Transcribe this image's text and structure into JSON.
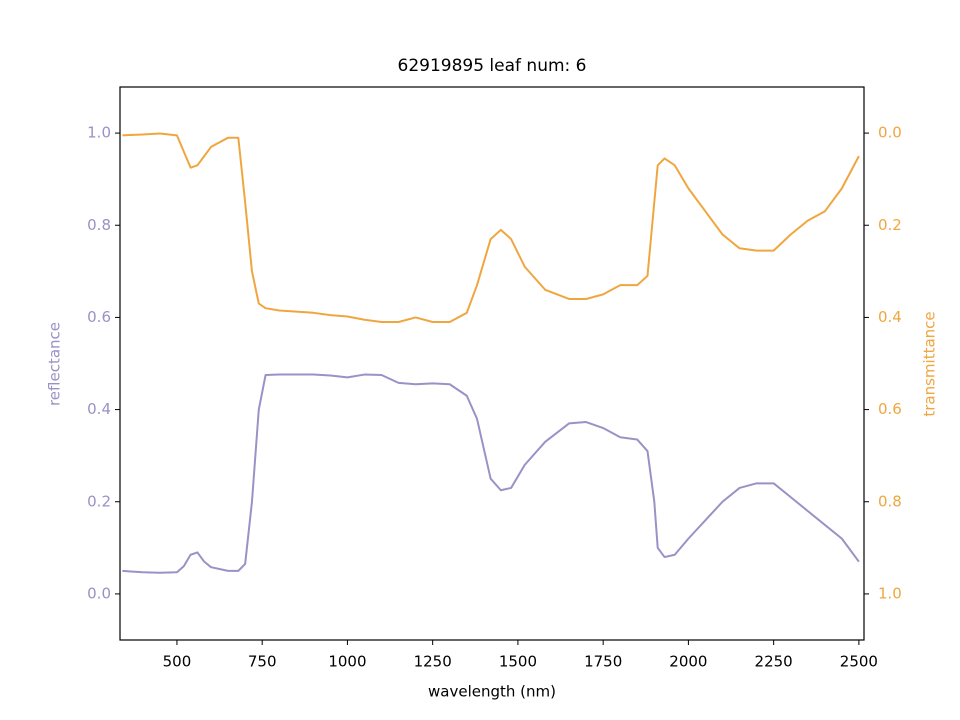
{
  "chart_data": {
    "type": "line",
    "title": "62919895 leaf num: 6",
    "x_label": "wavelength (nm)",
    "y_label": "reflectance",
    "y2_label": "transmittance",
    "x": [
      340,
      400,
      450,
      500,
      520,
      540,
      560,
      580,
      600,
      650,
      680,
      700,
      720,
      740,
      760,
      800,
      900,
      950,
      1000,
      1050,
      1100,
      1150,
      1200,
      1250,
      1300,
      1350,
      1380,
      1420,
      1450,
      1480,
      1520,
      1580,
      1650,
      1700,
      1750,
      1800,
      1850,
      1880,
      1900,
      1910,
      1930,
      1960,
      2000,
      2050,
      2100,
      2150,
      2200,
      2250,
      2300,
      2350,
      2400,
      2450,
      2500
    ],
    "series": [
      {
        "name": "reflectance",
        "color": "#9992c6",
        "values": [
          0.05,
          0.047,
          0.046,
          0.047,
          0.06,
          0.085,
          0.09,
          0.07,
          0.058,
          0.05,
          0.05,
          0.065,
          0.2,
          0.4,
          0.475,
          0.476,
          0.476,
          0.474,
          0.47,
          0.476,
          0.475,
          0.458,
          0.455,
          0.457,
          0.455,
          0.43,
          0.38,
          0.25,
          0.225,
          0.23,
          0.28,
          0.33,
          0.37,
          0.373,
          0.36,
          0.34,
          0.335,
          0.31,
          0.2,
          0.1,
          0.08,
          0.085,
          0.12,
          0.16,
          0.2,
          0.23,
          0.24,
          0.24,
          0.21,
          0.18,
          0.15,
          0.12,
          0.07
        ]
      },
      {
        "name": "transmittance",
        "color": "#f0a640",
        "axis": "y2",
        "values": [
          0.005,
          0.003,
          0.001,
          0.005,
          0.04,
          0.075,
          0.07,
          0.05,
          0.03,
          0.01,
          0.01,
          0.15,
          0.3,
          0.37,
          0.38,
          0.385,
          0.39,
          0.395,
          0.398,
          0.405,
          0.41,
          0.41,
          0.4,
          0.41,
          0.41,
          0.39,
          0.33,
          0.23,
          0.21,
          0.23,
          0.29,
          0.34,
          0.36,
          0.36,
          0.35,
          0.33,
          0.33,
          0.31,
          0.15,
          0.07,
          0.055,
          0.07,
          0.12,
          0.17,
          0.22,
          0.25,
          0.255,
          0.255,
          0.22,
          0.19,
          0.17,
          0.12,
          0.05
        ]
      }
    ],
    "xlim": [
      333,
      2515
    ],
    "xticks": [
      500,
      750,
      1000,
      1250,
      1500,
      1750,
      2000,
      2250,
      2500
    ],
    "ylim": [
      -0.1,
      1.1
    ],
    "yticks": [
      {
        "value": 0,
        "label": "0.0"
      },
      {
        "value": 0.2,
        "label": "0.2"
      },
      {
        "value": 0.4,
        "label": "0.4"
      },
      {
        "value": 0.6,
        "label": "0.6"
      },
      {
        "value": 0.8,
        "label": "0.8"
      },
      {
        "value": 1,
        "label": "1.0"
      }
    ],
    "y2lim": [
      1.1,
      -0.1
    ],
    "y2ticks": [
      {
        "value": 0,
        "label": "0.0"
      },
      {
        "value": 0.2,
        "label": "0.2"
      },
      {
        "value": 0.4,
        "label": "0.4"
      },
      {
        "value": 0.6,
        "label": "0.6"
      },
      {
        "value": 0.8,
        "label": "0.8"
      },
      {
        "value": 1,
        "label": "1.0"
      }
    ],
    "grid": false
  }
}
